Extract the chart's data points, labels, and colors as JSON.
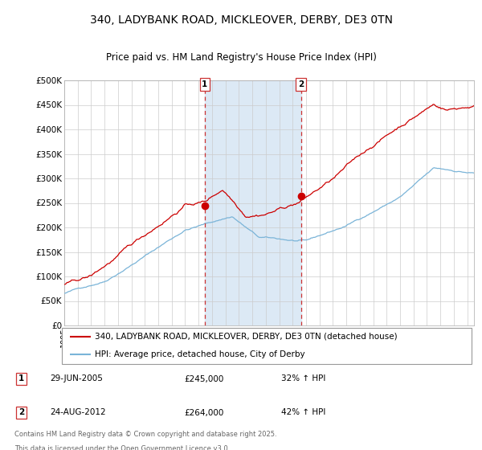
{
  "title": "340, LADYBANK ROAD, MICKLEOVER, DERBY, DE3 0TN",
  "subtitle": "Price paid vs. HM Land Registry's House Price Index (HPI)",
  "legend_property": "340, LADYBANK ROAD, MICKLEOVER, DERBY, DE3 0TN (detached house)",
  "legend_hpi": "HPI: Average price, detached house, City of Derby",
  "annotation1_label": "1",
  "annotation1_date": "29-JUN-2005",
  "annotation1_price": "£245,000",
  "annotation1_hpi": "32% ↑ HPI",
  "annotation2_label": "2",
  "annotation2_date": "24-AUG-2012",
  "annotation2_price": "£264,000",
  "annotation2_hpi": "42% ↑ HPI",
  "footer_line1": "Contains HM Land Registry data © Crown copyright and database right 2025.",
  "footer_line2": "This data is licensed under the Open Government Licence v3.0.",
  "property_color": "#cc0000",
  "hpi_color": "#7ab4d8",
  "shade_color": "#dce9f5",
  "grid_color": "#cccccc",
  "annotation_line_color": "#cc3333",
  "ylim": [
    0,
    500000
  ],
  "yticks": [
    0,
    50000,
    100000,
    150000,
    200000,
    250000,
    300000,
    350000,
    400000,
    450000,
    500000
  ],
  "xlim_start": 1995.0,
  "xlim_end": 2025.5,
  "t1_x": 2005.458,
  "t1_y": 245000,
  "t2_x": 2012.625,
  "t2_y": 264000
}
